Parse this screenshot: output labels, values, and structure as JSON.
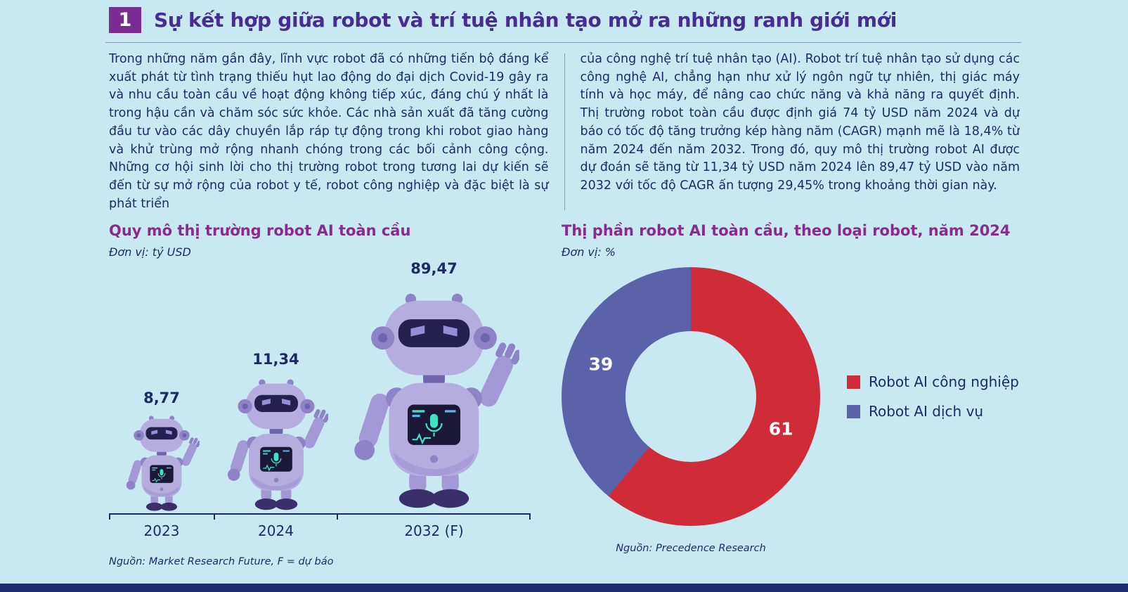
{
  "page": {
    "bg_color": "#c9e9f2",
    "footer_bar_color": "#1c2e6d"
  },
  "header": {
    "badge": "1",
    "title": "Sự kết hợp giữa robot và trí tuệ nhân tạo mở ra những ranh giới mới"
  },
  "article": {
    "col_left": "Trong những năm gần đây, lĩnh vực robot đã có những tiến bộ đáng kể xuất phát từ tình trạng thiếu hụt lao động do đại dịch Covid-19 gây ra và nhu cầu toàn cầu về hoạt động không tiếp xúc, đáng chú ý nhất là trong hậu cần và chăm sóc sức khỏe. Các nhà sản xuất đã tăng cường đầu tư vào các dây chuyền lắp ráp tự động trong khi robot giao hàng và khử trùng mở rộng nhanh chóng trong các bối cảnh công cộng. Những cơ hội sinh lời cho thị trường robot trong tương lai dự kiến sẽ đến từ sự mở rộng của robot y tế, robot công nghiệp và đặc biệt là sự phát triển",
    "col_right": "của công nghệ trí tuệ nhân tạo (AI). Robot trí tuệ nhân tạo sử dụng các công nghệ AI, chẳng hạn như xử lý ngôn ngữ tự nhiên, thị giác máy tính và học máy, để nâng cao chức năng và khả năng ra quyết định. Thị trường robot toàn cầu được định giá 74 tỷ USD năm 2024 và dự báo có tốc độ tăng trưởng kép hàng năm (CAGR) mạnh mẽ là 18,4% từ năm 2024 đến năm 2032. Trong đó, quy mô thị trường robot AI được dự đoán sẽ tăng từ 11,34 tỷ USD năm 2024 lên 89,47 tỷ USD vào năm 2032 với tốc độ CAGR ấn tượng 29,45% trong khoảng thời gian này."
  },
  "chart_data": [
    {
      "type": "bar",
      "variant": "robot-pictogram",
      "title": "Quy mô thị trường robot AI toàn cầu",
      "unit_label": "Đơn vị: tỷ USD",
      "categories": [
        "2023",
        "2024",
        "2032 (F)"
      ],
      "values": [
        8.77,
        11.34,
        89.47
      ],
      "value_labels": [
        "8,77",
        "11,34",
        "89,47"
      ],
      "source": "Nguồn: Market Research Future, F = dự báo"
    },
    {
      "type": "pie",
      "variant": "donut",
      "title": "Thị phần robot AI toàn cầu, theo loại robot, năm 2024",
      "unit_label": "Đơn vị: %",
      "labels": [
        "Robot AI công nghiệp",
        "Robot AI dịch vụ"
      ],
      "values": [
        61,
        39
      ],
      "value_labels": [
        "61",
        "39"
      ],
      "colors": [
        "#cf2b38",
        "#5a63aa"
      ],
      "legend_position": "right",
      "source": "Nguồn: Precedence Research"
    }
  ]
}
